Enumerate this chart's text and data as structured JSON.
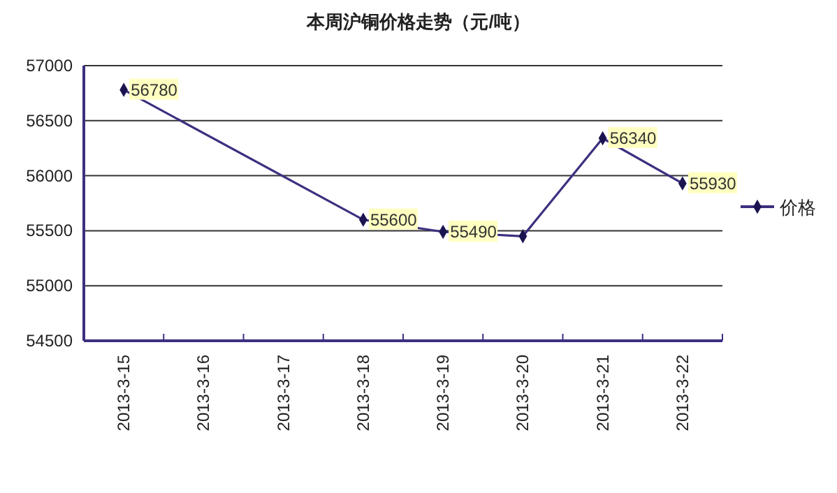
{
  "chart_data": {
    "type": "line",
    "title": "本周沪铜价格走势（元/吨）",
    "categories": [
      "2013-3-15",
      "2013-3-16",
      "2013-3-17",
      "2013-3-18",
      "2013-3-19",
      "2013-3-20",
      "2013-3-21",
      "2013-3-22"
    ],
    "series": [
      {
        "name": "价格",
        "color": "#3d2f80",
        "values": [
          56780,
          null,
          null,
          55600,
          55490,
          55450,
          56340,
          55930
        ],
        "value_labels": [
          "56780",
          null,
          null,
          "55600",
          "55490",
          null,
          "56340",
          "55930"
        ]
      }
    ],
    "ylim": [
      54500,
      57000
    ],
    "yticks": [
      54500,
      55000,
      55500,
      56000,
      56500,
      57000
    ],
    "grid": "y",
    "legend": "right",
    "marker": "diamond",
    "line_style": "solid"
  }
}
